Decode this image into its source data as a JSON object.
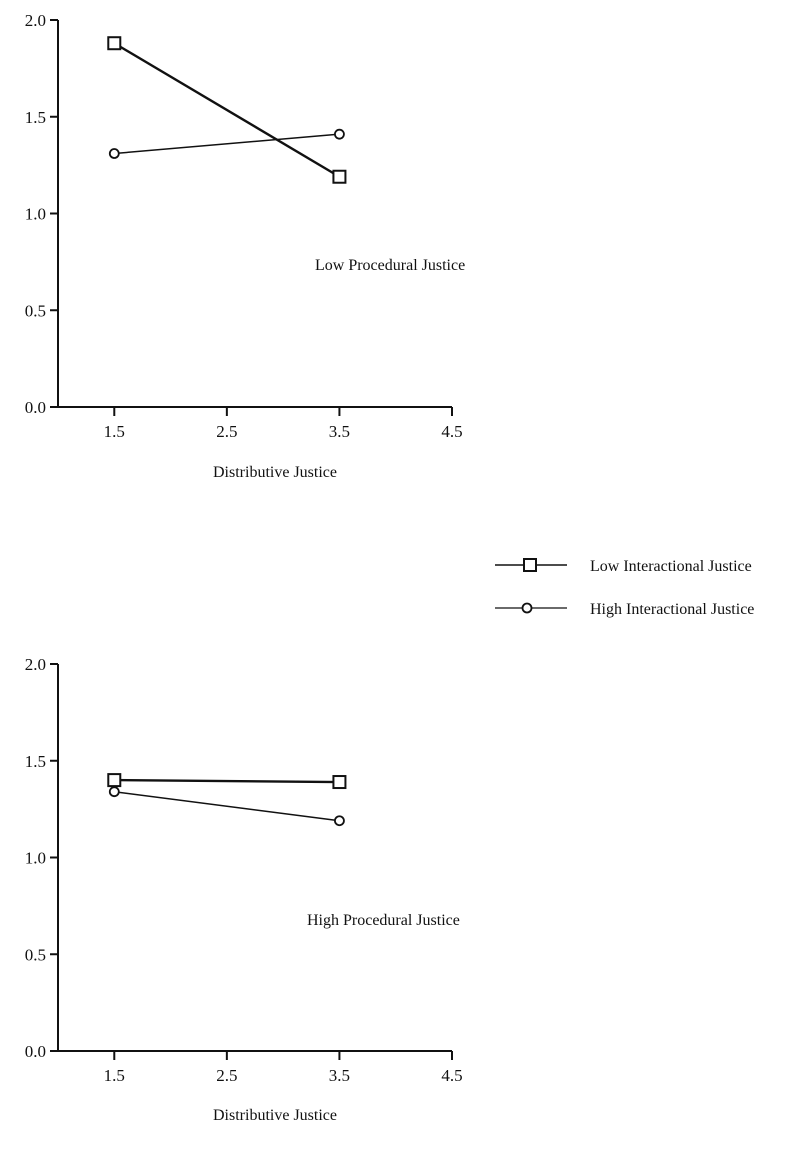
{
  "colors": {
    "ink": "#111111",
    "background": "#ffffff"
  },
  "legend": {
    "items": [
      {
        "label": "Low Interactional Justice",
        "marker": "square-icon"
      },
      {
        "label": "High Interactional Justice",
        "marker": "diamond-circle-icon"
      }
    ]
  },
  "chart_data": [
    {
      "type": "line",
      "annotation": "Low Procedural Justice",
      "xlabel": "Distributive Justice",
      "ylabel": "",
      "xlim": [
        1.0,
        4.5
      ],
      "ylim": [
        0.0,
        2.0
      ],
      "x_ticks": [
        "1.5",
        "2.5",
        "3.5",
        "4.5"
      ],
      "y_ticks": [
        "0.0",
        "0.5",
        "1.0",
        "1.5",
        "2.0"
      ],
      "grid": false,
      "series": [
        {
          "name": "Low Interactional Justice",
          "marker": "square",
          "x": [
            1.5,
            3.5
          ],
          "y": [
            1.88,
            1.19
          ]
        },
        {
          "name": "High Interactional Justice",
          "marker": "circle",
          "x": [
            1.5,
            3.5
          ],
          "y": [
            1.31,
            1.41
          ]
        }
      ]
    },
    {
      "type": "line",
      "annotation": "High Procedural Justice",
      "xlabel": "Distributive Justice",
      "ylabel": "",
      "xlim": [
        1.0,
        4.5
      ],
      "ylim": [
        0.0,
        2.0
      ],
      "x_ticks": [
        "1.5",
        "2.5",
        "3.5",
        "4.5"
      ],
      "y_ticks": [
        "0.0",
        "0.5",
        "1.0",
        "1.5",
        "2.0"
      ],
      "grid": false,
      "series": [
        {
          "name": "Low Interactional Justice",
          "marker": "square",
          "x": [
            1.5,
            3.5
          ],
          "y": [
            1.4,
            1.39
          ]
        },
        {
          "name": "High Interactional Justice",
          "marker": "circle",
          "x": [
            1.5,
            3.5
          ],
          "y": [
            1.34,
            1.19
          ]
        }
      ]
    }
  ]
}
